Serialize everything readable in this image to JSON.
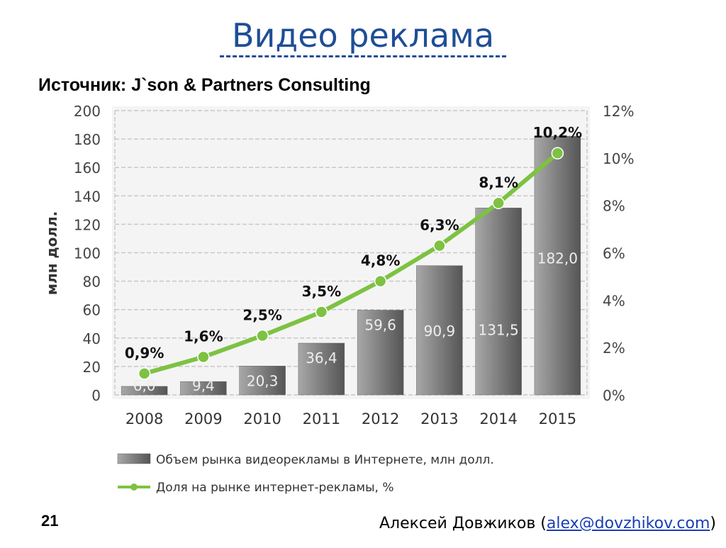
{
  "slide": {
    "title": "Видео реклама",
    "source": "Источник: J`son & Partners Consulting",
    "page_number": "21",
    "author_name": "Алексей Довжиков (",
    "author_email": "alex@dovzhikov.com",
    "author_suffix": ")"
  },
  "colors": {
    "title": "#1f4e96",
    "line": "#7dc242",
    "bar_dark": "#555555",
    "bar_light": "#a8a8a8"
  },
  "chart_data": {
    "type": "bar",
    "categories": [
      "2008",
      "2009",
      "2010",
      "2011",
      "2012",
      "2013",
      "2014",
      "2015"
    ],
    "ylabel": "млн долл.",
    "ylim": [
      0,
      200
    ],
    "yticks": [
      "0",
      "20",
      "40",
      "60",
      "80",
      "100",
      "120",
      "140",
      "160",
      "180",
      "200"
    ],
    "y2lim": [
      0,
      12
    ],
    "y2ticks": [
      "0%",
      "2%",
      "4%",
      "6%",
      "8%",
      "10%",
      "12%"
    ],
    "grid": true,
    "series": [
      {
        "name": "Объем рынка видеорекламы в Интернете, млн долл.",
        "kind": "bar",
        "axis": "left",
        "values": [
          6.0,
          9.4,
          20.3,
          36.4,
          59.6,
          90.9,
          131.5,
          182.0
        ],
        "labels": [
          "6,0",
          "9,4",
          "20,3",
          "36,4",
          "59,6",
          "90,9",
          "131,5",
          "182,0"
        ]
      },
      {
        "name": "Доля на рынке интернет-рекламы, %",
        "kind": "line",
        "axis": "right",
        "values": [
          0.9,
          1.6,
          2.5,
          3.5,
          4.8,
          6.3,
          8.1,
          10.2
        ],
        "labels": [
          "0,9%",
          "1,6%",
          "2,5%",
          "3,5%",
          "4,8%",
          "6,3%",
          "8,1%",
          "10,2%"
        ]
      }
    ],
    "legend_position": "bottom-center"
  }
}
